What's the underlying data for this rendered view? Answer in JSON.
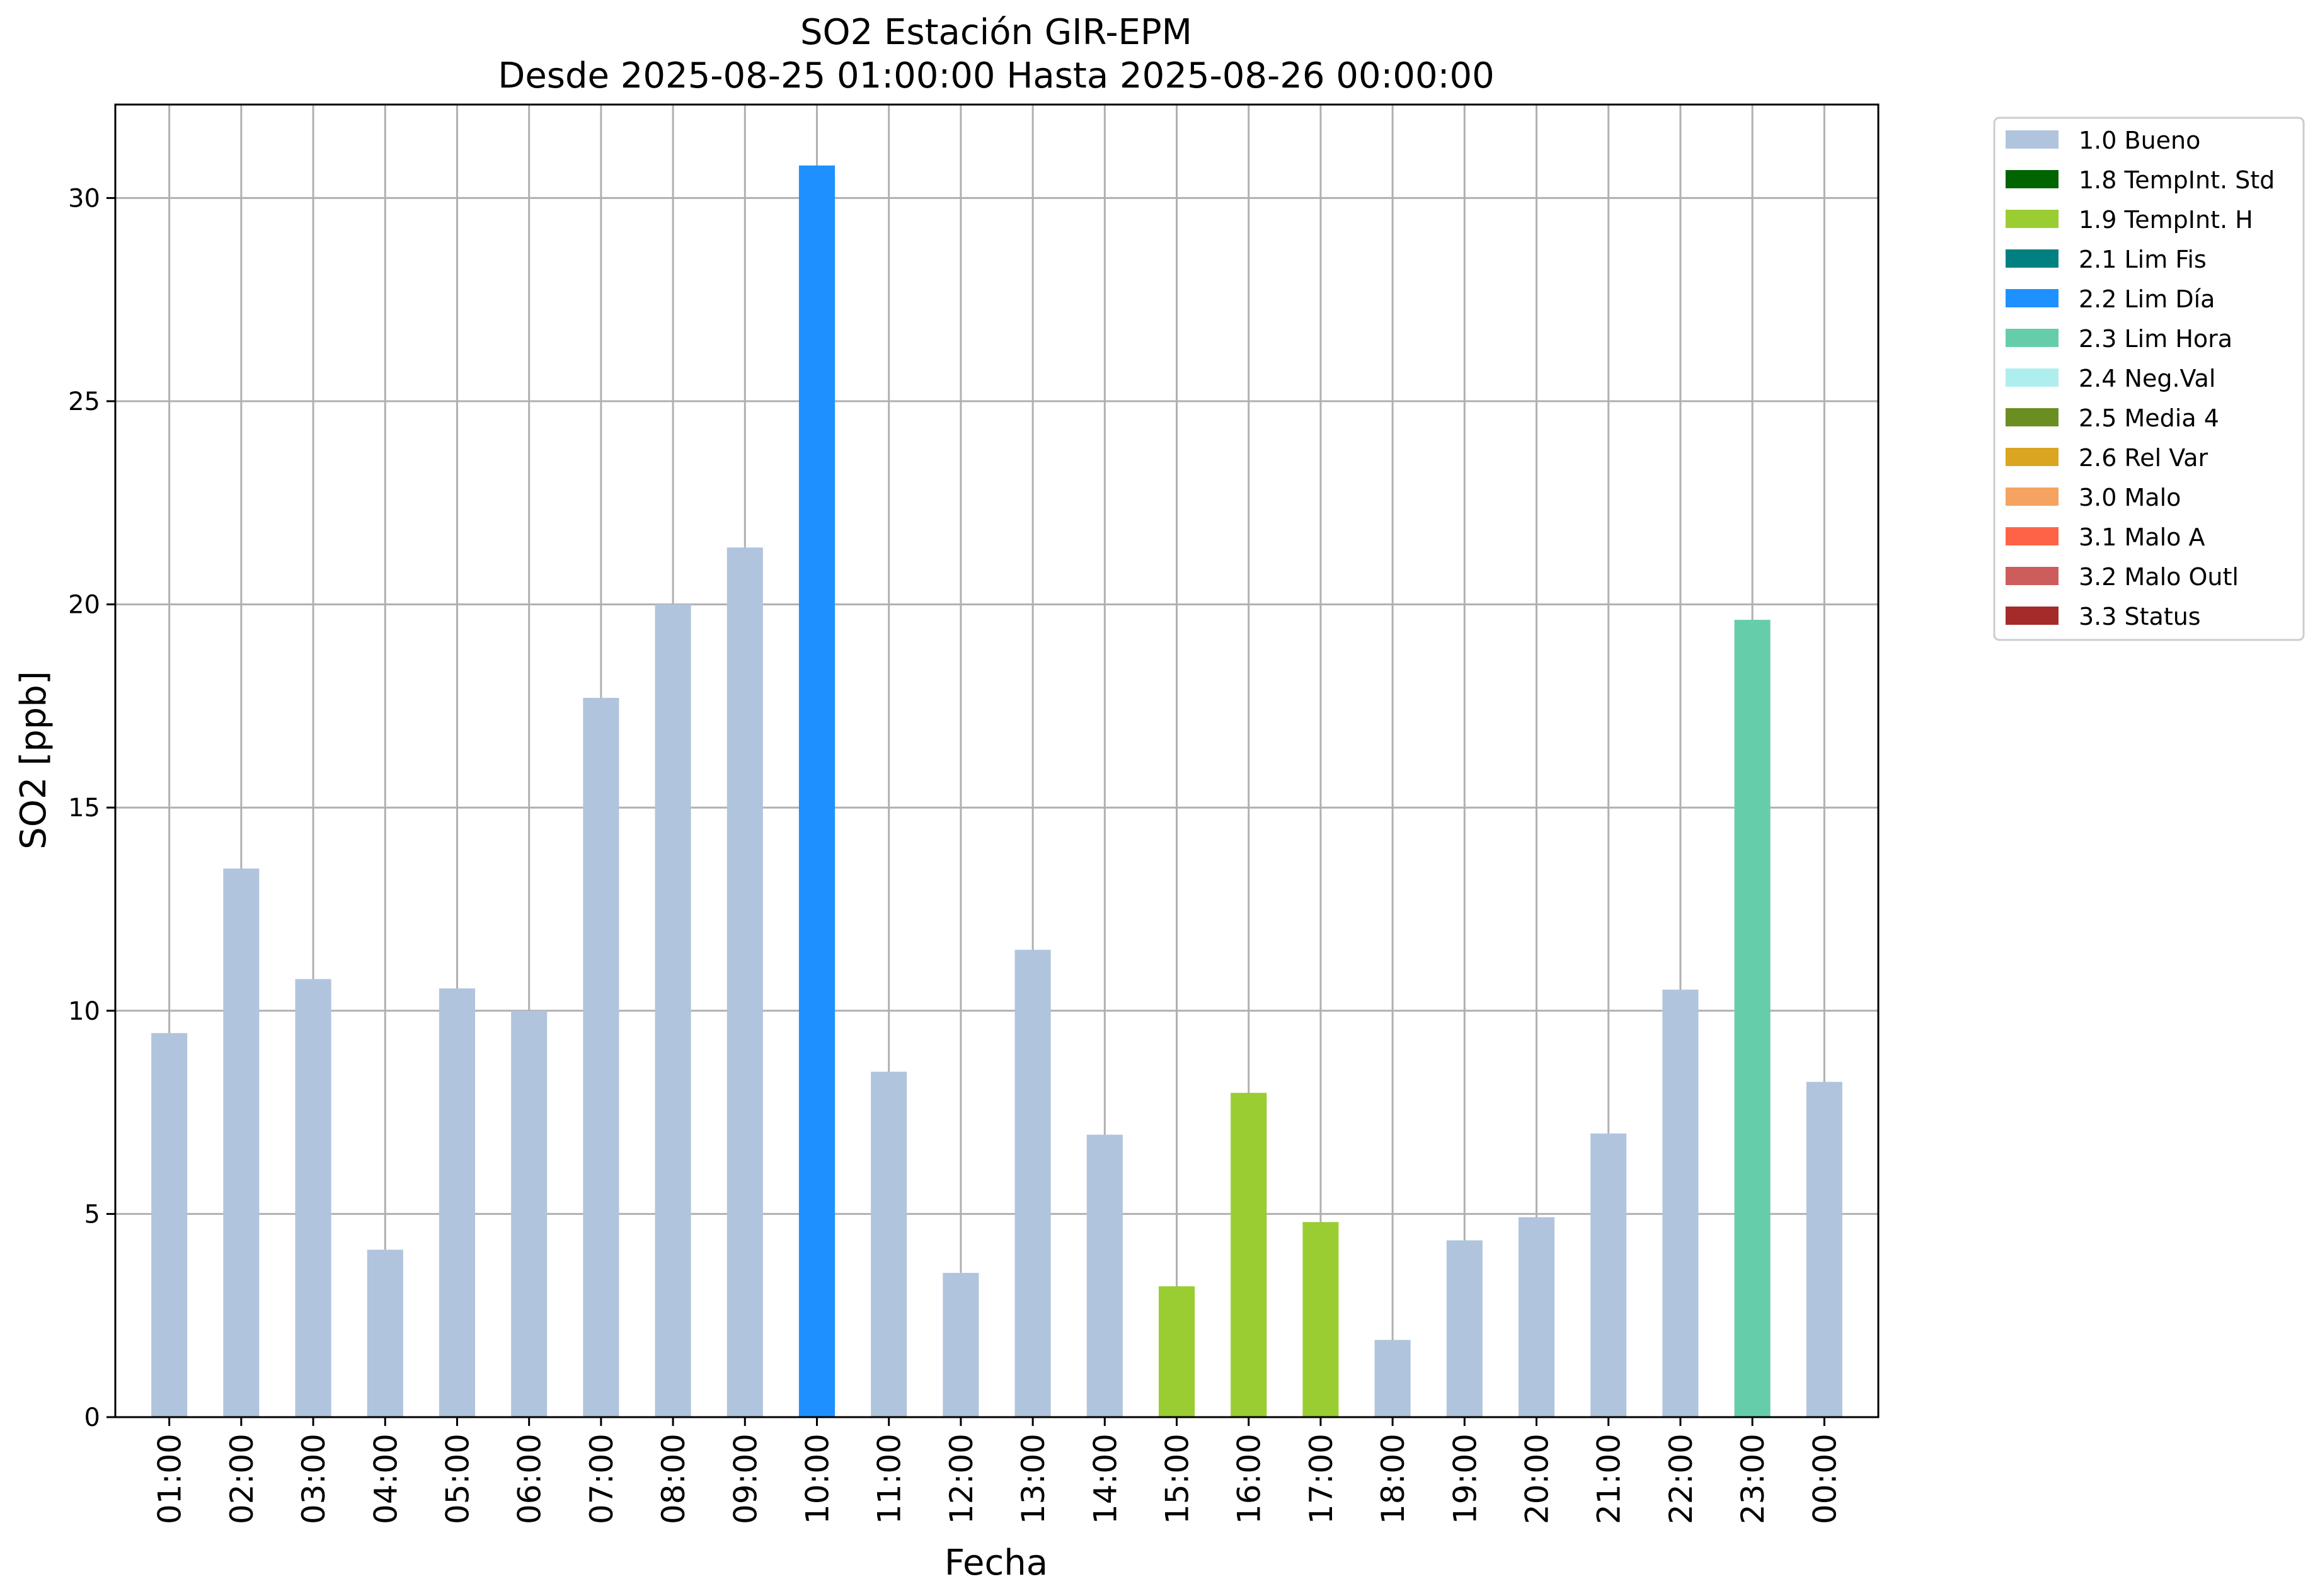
{
  "chart_data": {
    "type": "bar",
    "title": "SO2 Estación GIR-EPM",
    "subtitle": "Desde 2025-08-25 01:00:00 Hasta 2025-08-26 00:00:00",
    "xlabel": "Fecha",
    "ylabel": "SO2 [ppb]",
    "ylim": [
      0,
      32.3
    ],
    "yticks": [
      0,
      5,
      10,
      15,
      20,
      25,
      30
    ],
    "grid": true,
    "legend_position": "outside-top-right",
    "categories": [
      "01:00",
      "02:00",
      "03:00",
      "04:00",
      "05:00",
      "06:00",
      "07:00",
      "08:00",
      "09:00",
      "10:00",
      "11:00",
      "12:00",
      "13:00",
      "14:00",
      "15:00",
      "16:00",
      "17:00",
      "18:00",
      "19:00",
      "20:00",
      "21:00",
      "22:00",
      "23:00",
      "00:00"
    ],
    "values": [
      9.45,
      13.5,
      10.78,
      4.12,
      10.55,
      10.0,
      17.7,
      20.0,
      21.4,
      30.8,
      8.5,
      3.55,
      11.5,
      6.95,
      3.22,
      7.98,
      4.8,
      1.9,
      4.35,
      4.92,
      6.98,
      10.52,
      19.62,
      8.25
    ],
    "quality_codes": [
      "1.0 Bueno",
      "1.0 Bueno",
      "1.0 Bueno",
      "1.0 Bueno",
      "1.0 Bueno",
      "1.0 Bueno",
      "1.0 Bueno",
      "1.0 Bueno",
      "1.0 Bueno",
      "2.2 Lim Día",
      "1.0 Bueno",
      "1.0 Bueno",
      "1.0 Bueno",
      "1.0 Bueno",
      "1.9 TempInt. H",
      "1.9 TempInt. H",
      "1.9 TempInt. H",
      "1.0 Bueno",
      "1.0 Bueno",
      "1.0 Bueno",
      "1.0 Bueno",
      "1.0 Bueno",
      "2.3 Lim Hora",
      "1.0 Bueno"
    ],
    "legend": [
      {
        "label": "1.0 Bueno",
        "color": "#b0c4de"
      },
      {
        "label": "1.8 TempInt. Std",
        "color": "#006400"
      },
      {
        "label": "1.9 TempInt. H",
        "color": "#9acd32"
      },
      {
        "label": "2.1 Lim Fis",
        "color": "#008080"
      },
      {
        "label": "2.2 Lim Día",
        "color": "#1e90ff"
      },
      {
        "label": "2.3 Lim Hora",
        "color": "#66cdaa"
      },
      {
        "label": "2.4 Neg.Val",
        "color": "#afeeee"
      },
      {
        "label": "2.5 Media 4",
        "color": "#6b8e23"
      },
      {
        "label": "2.6 Rel Var",
        "color": "#daa520"
      },
      {
        "label": "3.0 Malo",
        "color": "#f4a460"
      },
      {
        "label": "3.1 Malo A",
        "color": "#ff6347"
      },
      {
        "label": "3.2 Malo Outl",
        "color": "#cd5c5c"
      },
      {
        "label": "3.3 Status",
        "color": "#a52a2a"
      }
    ],
    "grid_color": "#b0b0b0"
  }
}
